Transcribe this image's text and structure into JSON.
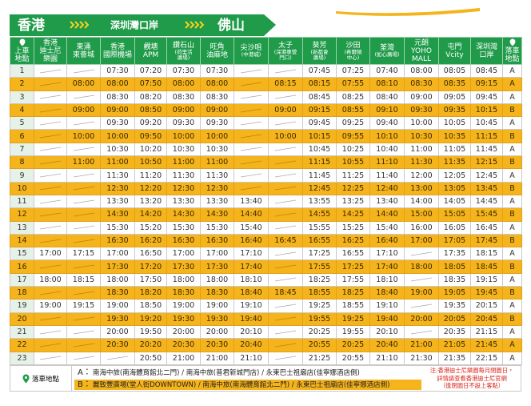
{
  "banner": {
    "from": "香港",
    "via": "深圳灣口岸",
    "to": "佛山"
  },
  "table": {
    "headers": [
      {
        "name": "上車\n地點"
      },
      {
        "name": "香港\n迪士尼\n樂園"
      },
      {
        "name": "東涌\n東薈城"
      },
      {
        "name": "香港\n國際機場"
      },
      {
        "name": "觀塘\nAPM"
      },
      {
        "name": "鑽石山",
        "sub": "(荷里活\n廣場)"
      },
      {
        "name": "旺角\n油麻地"
      },
      {
        "name": "尖沙咀",
        "sub": "(中港城)"
      },
      {
        "name": "太子",
        "sub": "(深港專營\n門口)"
      },
      {
        "name": "葵芳",
        "sub": "(新都會\n廣場)"
      },
      {
        "name": "沙田",
        "sub": "(希爾頓\n中心)"
      },
      {
        "name": "荃灣",
        "sub": "(如心廣場)"
      },
      {
        "name": "元朗\nYOHO\nMALL"
      },
      {
        "name": "屯門\nVcity"
      },
      {
        "name": "深圳灣\n口岸"
      },
      {
        "name": "落車\n地點"
      }
    ],
    "rows": [
      [
        1,
        null,
        null,
        "07:30",
        "07:20",
        "07:30",
        "07:30",
        null,
        null,
        "07:45",
        "07:25",
        "07:40",
        "08:00",
        "08:05",
        "08:45",
        "A"
      ],
      [
        2,
        null,
        "08:00",
        "08:00",
        "07:50",
        "08:00",
        "08:00",
        null,
        "08:15",
        "08:15",
        "07:55",
        "08:10",
        "08:30",
        "08:35",
        "09:15",
        "A"
      ],
      [
        3,
        null,
        null,
        "08:30",
        "08:20",
        "08:30",
        "08:30",
        null,
        null,
        "08:45",
        "08:25",
        "08:40",
        "09:00",
        "09:05",
        "09:45",
        "A"
      ],
      [
        4,
        null,
        "09:00",
        "09:00",
        "08:50",
        "09:00",
        "09:00",
        null,
        "09:00",
        "09:15",
        "08:55",
        "09:10",
        "09:30",
        "09:35",
        "10:15",
        "B"
      ],
      [
        5,
        null,
        null,
        "09:30",
        "09:20",
        "09:30",
        "09:30",
        null,
        null,
        "09:45",
        "09:25",
        "09:40",
        "10:00",
        "10:05",
        "10:45",
        "A"
      ],
      [
        6,
        null,
        "10:00",
        "10:00",
        "09:50",
        "10:00",
        "10:00",
        null,
        "10:00",
        "10:15",
        "09:55",
        "10:10",
        "10:30",
        "10:35",
        "11:15",
        "B"
      ],
      [
        7,
        null,
        null,
        "10:30",
        "10:20",
        "10:30",
        "10:30",
        null,
        null,
        "10:45",
        "10:25",
        "10:40",
        "11:00",
        "11:05",
        "11:45",
        "A"
      ],
      [
        8,
        null,
        "11:00",
        "11:00",
        "10:50",
        "11:00",
        "11:00",
        null,
        null,
        "11:15",
        "10:55",
        "11:10",
        "11:30",
        "11:35",
        "12:15",
        "B"
      ],
      [
        9,
        null,
        null,
        "11:30",
        "11:20",
        "11:30",
        "11:30",
        null,
        null,
        "11:45",
        "11:25",
        "11:40",
        "12:00",
        "12:05",
        "12:45",
        "A"
      ],
      [
        10,
        null,
        null,
        "12:30",
        "12:20",
        "12:30",
        "12:30",
        null,
        null,
        "12:45",
        "12:25",
        "12:40",
        "13:00",
        "13:05",
        "13:45",
        "B"
      ],
      [
        11,
        null,
        null,
        "13:30",
        "13:20",
        "13:30",
        "13:30",
        "13:40",
        null,
        "13:55",
        "13:25",
        "13:40",
        "14:00",
        "14:05",
        "14:45",
        "A"
      ],
      [
        12,
        null,
        null,
        "14:30",
        "14:20",
        "14:30",
        "14:30",
        "14:40",
        null,
        "14:55",
        "14:25",
        "14:40",
        "15:00",
        "15:05",
        "15:45",
        "B"
      ],
      [
        13,
        null,
        null,
        "15:30",
        "15:20",
        "15:30",
        "15:30",
        "15:40",
        null,
        "15:55",
        "15:25",
        "15:40",
        "16:00",
        "16:05",
        "16:45",
        "A"
      ],
      [
        14,
        null,
        null,
        "16:30",
        "16:20",
        "16:30",
        "16:30",
        "16:40",
        "16:45",
        "16:55",
        "16:25",
        "16:40",
        "17:00",
        "17:05",
        "17:45",
        "B"
      ],
      [
        15,
        "17:00",
        "17:15",
        "17:00",
        "16:50",
        "17:00",
        "17:00",
        "17:10",
        null,
        "17:25",
        "16:55",
        "17:10",
        null,
        "17:35",
        "18:15",
        "A"
      ],
      [
        16,
        null,
        null,
        "17:30",
        "17:20",
        "17:30",
        "17:30",
        "17:40",
        null,
        "17:55",
        "17:25",
        "17:40",
        "18:00",
        "18:05",
        "18:45",
        "B"
      ],
      [
        17,
        "18:00",
        "18:15",
        "18:00",
        "17:50",
        "18:00",
        "18:00",
        "18:10",
        null,
        "18:25",
        "17:55",
        "18:10",
        null,
        "18:35",
        "19:15",
        "A"
      ],
      [
        18,
        null,
        null,
        "18:30",
        "18:20",
        "18:30",
        "18:30",
        "18:40",
        "18:45",
        "18:55",
        "18:25",
        "18:40",
        "19:00",
        "19:05",
        "19:45",
        "B"
      ],
      [
        19,
        "19:00",
        "19:15",
        "19:00",
        "18:50",
        "19:00",
        "19:00",
        "19:10",
        null,
        "19:25",
        "18:55",
        "19:10",
        null,
        "19:35",
        "20:15",
        "A"
      ],
      [
        20,
        null,
        null,
        "19:30",
        "19:20",
        "19:30",
        "19:30",
        "19:40",
        null,
        "19:55",
        "19:25",
        "19:40",
        "20:00",
        "20:05",
        "20:45",
        "B"
      ],
      [
        21,
        null,
        null,
        "20:00",
        "19:50",
        "20:00",
        "20:00",
        "20:10",
        null,
        "20:25",
        "19:55",
        "20:10",
        null,
        "20:35",
        "21:15",
        "A"
      ],
      [
        22,
        null,
        null,
        "20:30",
        "20:20",
        "20:30",
        "20:30",
        "20:40",
        null,
        "20:55",
        "20:25",
        "20:40",
        "21:00",
        "21:05",
        "21:45",
        "A"
      ],
      [
        23,
        null,
        null,
        null,
        "20:50",
        "21:00",
        "21:00",
        "21:10",
        null,
        "21:25",
        "20:55",
        "21:10",
        "21:30",
        "21:35",
        "22:15",
        "A"
      ]
    ]
  },
  "footer": {
    "title": "落車地點",
    "lines": [
      {
        "code": "A：",
        "text": "南海中旅(南海體育館北二門) / 南海中旅(普君新城門店) / 永東巴士祖廟店(佳寧娜酒店側)"
      },
      {
        "code": "B：",
        "text": "麗致豐廣場(堂人街DOWNTOWN) / 南海中旅(南海體育館北二門) / 永東巴士祖廟店(佳寧娜酒店側)"
      }
    ],
    "note": "注:香港迪士尼樂園每月閉園日，\n詳情請查看香港迪士尼官網\n（逢閉園日不設上客點）"
  }
}
